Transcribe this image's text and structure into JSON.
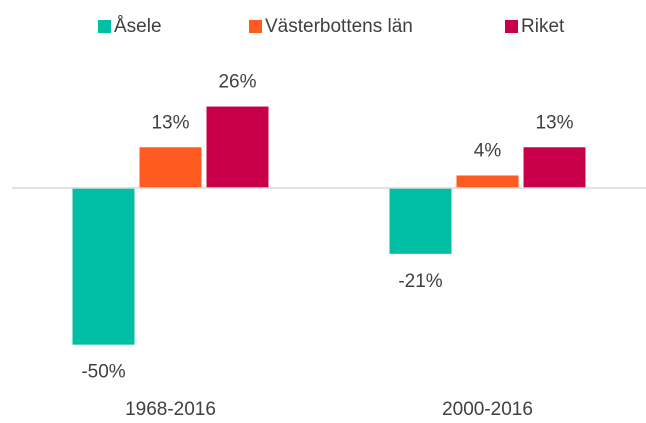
{
  "chart_data": {
    "type": "bar",
    "categories": [
      "1968-2016",
      "2000-2016"
    ],
    "series": [
      {
        "name": "Åsele",
        "color": "#00bfa5",
        "values": [
          -50,
          -21
        ],
        "value_labels": [
          "-50%",
          "-21%"
        ]
      },
      {
        "name": "Västerbottens län",
        "color": "#ff5a1f",
        "values": [
          13,
          4
        ],
        "value_labels": [
          "13%",
          "4%"
        ]
      },
      {
        "name": "Riket",
        "color": "#c8004a",
        "values": [
          26,
          13
        ],
        "value_labels": [
          "26%",
          "13%"
        ]
      }
    ],
    "ylim": [
      -60,
      30
    ],
    "legend": "top"
  }
}
